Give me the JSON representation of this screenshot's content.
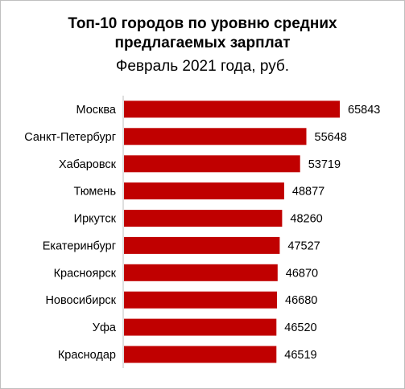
{
  "chart_data": {
    "type": "bar",
    "orientation": "horizontal",
    "title": "Топ-10 городов по уровню средних предлагаемых зарплат",
    "title_lines": [
      "Топ-10 городов по уровню средних",
      "предлагаемых зарплат"
    ],
    "subtitle": "Февраль 2021 года, руб.",
    "categories": [
      "Москва",
      "Санкт-Петербург",
      "Хабаровск",
      "Тюмень",
      "Иркутск",
      "Екатеринбург",
      "Красноярск",
      "Новосибирск",
      "Уфа",
      "Краснодар"
    ],
    "values": [
      65843,
      55648,
      53719,
      48877,
      48260,
      47527,
      46870,
      46680,
      46520,
      46519
    ],
    "xlim": [
      0,
      65843
    ],
    "bar_color": "#c00000",
    "grid": false,
    "legend": "none",
    "data_labels": true
  }
}
